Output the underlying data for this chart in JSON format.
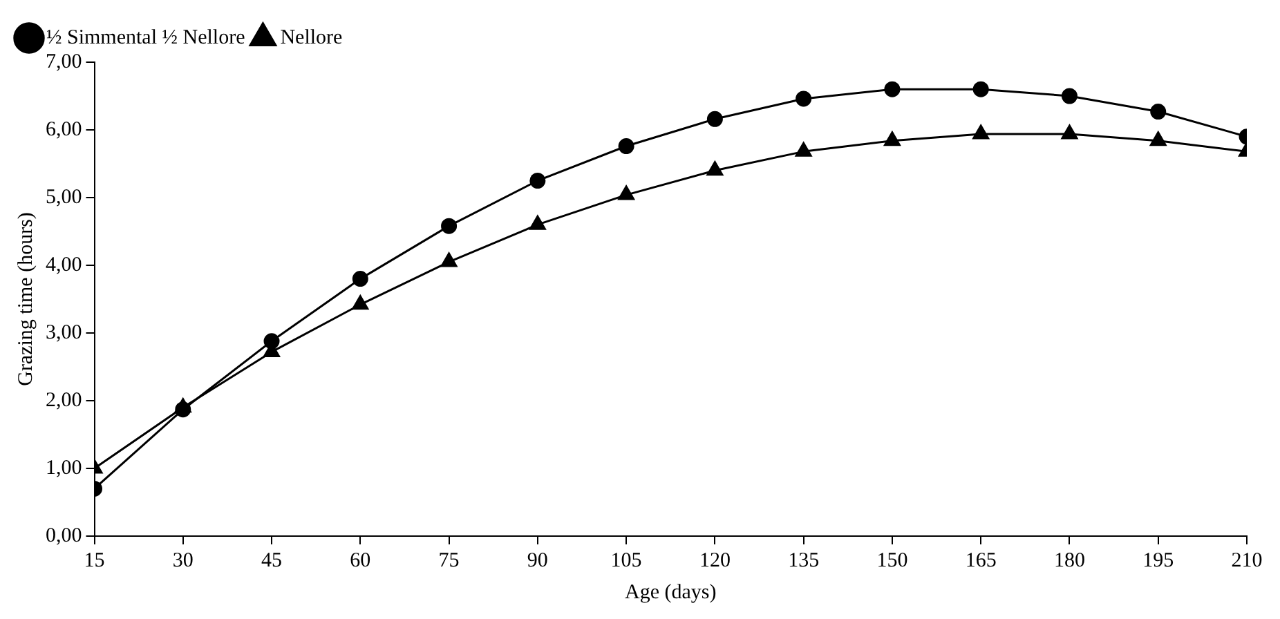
{
  "chart_data": {
    "type": "line",
    "xlabel": "Age (days)",
    "ylabel": "Grazing time (hours)",
    "x": [
      15,
      30,
      45,
      60,
      75,
      90,
      105,
      120,
      135,
      150,
      165,
      180,
      195,
      210
    ],
    "series": [
      {
        "name": "Nellore",
        "color": "#000000",
        "marker": "triangle",
        "values": [
          1.0,
          1.9,
          2.72,
          3.42,
          4.05,
          4.6,
          5.04,
          5.4,
          5.68,
          5.84,
          5.94,
          5.94,
          5.84,
          5.68
        ]
      },
      {
        "name": "½ Simmental ½ Nellore",
        "color": "#000000",
        "marker": "circle",
        "values": [
          0.7,
          1.87,
          2.88,
          3.8,
          4.58,
          5.25,
          5.76,
          6.16,
          6.46,
          6.6,
          6.6,
          6.5,
          6.27,
          5.9
        ]
      }
    ],
    "xlim": [
      15,
      210
    ],
    "xticks": [
      15,
      30,
      45,
      60,
      75,
      90,
      105,
      120,
      135,
      150,
      165,
      180,
      195,
      210
    ],
    "ylim": [
      0,
      7
    ],
    "yticks": [
      {
        "value": 0,
        "label": "0,00"
      },
      {
        "value": 1,
        "label": "1,00"
      },
      {
        "value": 2,
        "label": "2,00"
      },
      {
        "value": 3,
        "label": "3,00"
      },
      {
        "value": 4,
        "label": "4,00"
      },
      {
        "value": 5,
        "label": "5,00"
      },
      {
        "value": 6,
        "label": "6,00"
      },
      {
        "value": 7,
        "label": "7,00"
      }
    ],
    "grid": false,
    "legend": "top left",
    "line_style": "solid"
  }
}
